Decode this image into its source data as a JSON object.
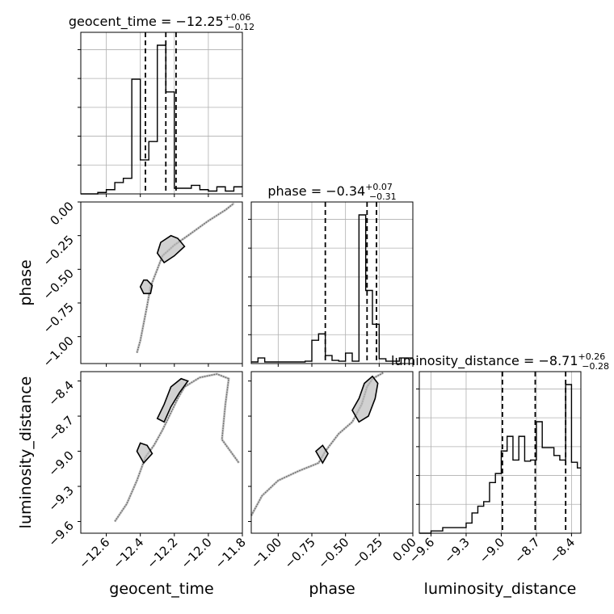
{
  "chart_data": {
    "type": "corner",
    "parameters": [
      "geocent_time",
      "phase",
      "luminosity_distance"
    ],
    "titles": [
      {
        "parameter": "geocent_time",
        "prefix": "geocent_time = ",
        "median": "−12.25",
        "plus": "+0.06",
        "minus": "−0.12"
      },
      {
        "parameter": "phase",
        "prefix": "phase = ",
        "median": "−0.34",
        "plus": "+0.07",
        "minus": "−0.31"
      },
      {
        "parameter": "luminosity_distance",
        "prefix": "luminosity_distance = ",
        "median": "−8.71",
        "plus": "+0.26",
        "minus": "−0.28"
      }
    ],
    "axis_labels": {
      "x": [
        "geocent_time",
        "phase",
        "luminosity_distance"
      ],
      "y": [
        "phase",
        "luminosity_distance"
      ]
    },
    "ranges": {
      "geocent_time": [
        -12.75,
        -11.8
      ],
      "phase": [
        -1.2,
        0.0
      ],
      "luminosity_distance": [
        -9.7,
        -8.32
      ]
    },
    "ticks": {
      "geocent_time": [
        "−12.6",
        "−12.4",
        "−12.2",
        "−12.0",
        "−11.8"
      ],
      "phase": [
        "−1.00",
        "−0.75",
        "−0.50",
        "−0.25",
        "0.00"
      ],
      "luminosity_distance": [
        "−9.6",
        "−9.3",
        "−9.0",
        "−8.7",
        "−8.4"
      ]
    },
    "tick_values": {
      "geocent_time": [
        -12.6,
        -12.4,
        -12.2,
        -12.0,
        -11.8
      ],
      "phase": [
        -1.0,
        -0.75,
        -0.5,
        -0.25,
        0.0
      ],
      "luminosity_distance": [
        -9.6,
        -9.3,
        -9.0,
        -8.7,
        -8.4
      ]
    },
    "quantiles": {
      "geocent_time": [
        -12.37,
        -12.25,
        -12.19
      ],
      "phase": [
        -0.65,
        -0.34,
        -0.27
      ],
      "luminosity_distance": [
        -8.99,
        -8.71,
        -8.45
      ]
    },
    "histograms": {
      "geocent_time": {
        "edges": [
          -12.75,
          -12.7,
          -12.65,
          -12.6,
          -12.55,
          -12.5,
          -12.45,
          -12.4,
          -12.35,
          -12.3,
          -12.25,
          -12.2,
          -12.15,
          -12.1,
          -12.05,
          -12.0,
          -11.95,
          -11.9,
          -11.85,
          -11.8
        ],
        "counts": [
          0,
          0,
          1,
          3,
          8,
          11,
          81,
          24,
          37,
          105,
          72,
          4,
          4,
          6,
          3,
          2,
          5,
          2,
          5
        ]
      },
      "phase": {
        "edges": [
          -1.2,
          -1.15,
          -1.1,
          -1.05,
          -1.0,
          -0.95,
          -0.9,
          -0.85,
          -0.8,
          -0.75,
          -0.7,
          -0.65,
          -0.6,
          -0.55,
          -0.5,
          -0.45,
          -0.4,
          -0.35,
          -0.3,
          -0.25,
          -0.2,
          -0.15,
          -0.1,
          -0.05,
          0.0
        ],
        "counts": [
          2,
          7,
          2,
          2,
          2,
          2,
          2,
          2,
          3,
          29,
          37,
          10,
          4,
          3,
          13,
          3,
          185,
          91,
          49,
          6,
          3,
          3,
          7,
          7
        ]
      },
      "luminosity_distance": {
        "edges": [
          -9.7,
          -9.65,
          -9.6,
          -9.55,
          -9.5,
          -9.45,
          -9.4,
          -9.35,
          -9.3,
          -9.25,
          -9.2,
          -9.15,
          -9.1,
          -9.05,
          -9.0,
          -8.95,
          -8.9,
          -8.85,
          -8.8,
          -8.75,
          -8.7,
          -8.65,
          -8.6,
          -8.55,
          -8.5,
          -8.45,
          -8.4,
          -8.35,
          -8.32
        ],
        "counts": [
          0,
          0,
          2,
          2,
          5,
          5,
          5,
          5,
          9,
          18,
          24,
          28,
          45,
          53,
          73,
          86,
          65,
          86,
          64,
          65,
          99,
          76,
          76,
          69,
          65,
          132,
          63,
          58
        ]
      }
    },
    "scatter_2d": [
      {
        "x": "geocent_time",
        "y": "phase",
        "path": [
          [
            -12.42,
            -1.12
          ],
          [
            -12.4,
            -1.03
          ],
          [
            -12.38,
            -0.9
          ],
          [
            -12.36,
            -0.77
          ],
          [
            -12.34,
            -0.63
          ],
          [
            -12.3,
            -0.5
          ],
          [
            -12.27,
            -0.4
          ],
          [
            -12.2,
            -0.32
          ],
          [
            -12.12,
            -0.25
          ],
          [
            -12.0,
            -0.14
          ],
          [
            -11.9,
            -0.06
          ],
          [
            -11.85,
            -0.01
          ]
        ],
        "contours": [
          [
            [
              -12.36,
              -0.58
            ],
            [
              -12.33,
              -0.62
            ],
            [
              -12.34,
              -0.68
            ],
            [
              -12.38,
              -0.68
            ],
            [
              -12.4,
              -0.63
            ],
            [
              -12.38,
              -0.58
            ]
          ],
          [
            [
              -12.28,
              -0.3
            ],
            [
              -12.22,
              -0.25
            ],
            [
              -12.18,
              -0.27
            ],
            [
              -12.14,
              -0.33
            ],
            [
              -12.2,
              -0.4
            ],
            [
              -12.26,
              -0.45
            ],
            [
              -12.3,
              -0.38
            ]
          ]
        ]
      },
      {
        "x": "geocent_time",
        "y": "luminosity_distance",
        "path": [
          [
            -12.55,
            -9.6
          ],
          [
            -12.48,
            -9.45
          ],
          [
            -12.42,
            -9.25
          ],
          [
            -12.37,
            -9.05
          ],
          [
            -12.32,
            -8.95
          ],
          [
            -12.27,
            -8.82
          ],
          [
            -12.23,
            -8.7
          ],
          [
            -12.18,
            -8.55
          ],
          [
            -12.14,
            -8.45
          ],
          [
            -12.05,
            -8.37
          ],
          [
            -11.95,
            -8.34
          ],
          [
            -11.88,
            -8.38
          ],
          [
            -11.9,
            -8.6
          ],
          [
            -11.92,
            -8.9
          ],
          [
            -11.82,
            -9.1
          ]
        ],
        "contours": [
          [
            [
              -12.36,
              -8.95
            ],
            [
              -12.33,
              -9.02
            ],
            [
              -12.38,
              -9.1
            ],
            [
              -12.42,
              -9.0
            ],
            [
              -12.4,
              -8.93
            ]
          ],
          [
            [
              -12.26,
              -8.75
            ],
            [
              -12.22,
              -8.62
            ],
            [
              -12.17,
              -8.5
            ],
            [
              -12.12,
              -8.4
            ],
            [
              -12.16,
              -8.38
            ],
            [
              -12.22,
              -8.45
            ],
            [
              -12.26,
              -8.6
            ],
            [
              -12.3,
              -8.72
            ]
          ]
        ]
      },
      {
        "x": "phase",
        "y": "luminosity_distance",
        "path": [
          [
            -1.2,
            -9.55
          ],
          [
            -1.12,
            -9.38
          ],
          [
            -1.0,
            -9.25
          ],
          [
            -0.85,
            -9.17
          ],
          [
            -0.7,
            -9.1
          ],
          [
            -0.65,
            -9.0
          ],
          [
            -0.55,
            -8.85
          ],
          [
            -0.45,
            -8.75
          ],
          [
            -0.38,
            -8.6
          ],
          [
            -0.34,
            -8.45
          ],
          [
            -0.3,
            -8.38
          ],
          [
            -0.22,
            -8.33
          ]
        ],
        "contours": [
          [
            [
              -0.67,
              -8.95
            ],
            [
              -0.63,
              -9.02
            ],
            [
              -0.67,
              -9.1
            ],
            [
              -0.72,
              -9.0
            ]
          ],
          [
            [
              -0.4,
              -8.55
            ],
            [
              -0.36,
              -8.42
            ],
            [
              -0.3,
              -8.36
            ],
            [
              -0.26,
              -8.42
            ],
            [
              -0.28,
              -8.55
            ],
            [
              -0.33,
              -8.7
            ],
            [
              -0.4,
              -8.75
            ],
            [
              -0.45,
              -8.65
            ]
          ]
        ]
      }
    ],
    "grid": true
  }
}
